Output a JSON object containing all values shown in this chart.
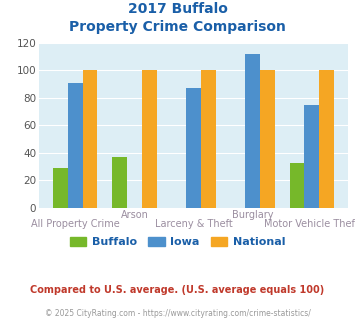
{
  "title_line1": "2017 Buffalo",
  "title_line2": "Property Crime Comparison",
  "buffalo_values": [
    29,
    37,
    0,
    0,
    33
  ],
  "iowa_values": [
    91,
    0,
    87,
    112,
    75
  ],
  "national_values": [
    100,
    100,
    100,
    100,
    100
  ],
  "buffalo_color": "#76b82a",
  "iowa_color": "#4d90cc",
  "national_color": "#f5a623",
  "title_color": "#1a5fa8",
  "bg_color": "#ddeef5",
  "xlabel_top_color": "#9b8ea0",
  "xlabel_bot_color": "#9b8ea0",
  "ylim": [
    0,
    120
  ],
  "yticks": [
    0,
    20,
    40,
    60,
    80,
    100,
    120
  ],
  "top_labels": [
    "",
    "Arson",
    "",
    "Burglary",
    ""
  ],
  "bottom_labels": [
    "All Property Crime",
    "",
    "Larceny & Theft",
    "",
    "Motor Vehicle Theft"
  ],
  "legend_labels": [
    "Buffalo",
    "Iowa",
    "National"
  ],
  "footnote1": "Compared to U.S. average. (U.S. average equals 100)",
  "footnote2": "© 2025 CityRating.com - https://www.cityrating.com/crime-statistics/",
  "footnote1_color": "#c0392b",
  "footnote2_color": "#999999",
  "bar_width": 0.25,
  "title_fontsize": 10,
  "legend_fontsize": 8,
  "ytick_fontsize": 7.5,
  "xlabel_fontsize": 7,
  "footnote1_fontsize": 7,
  "footnote2_fontsize": 5.5
}
